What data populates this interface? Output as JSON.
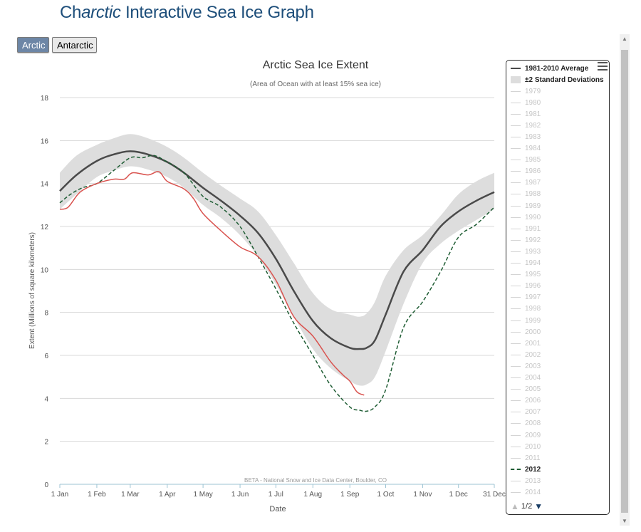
{
  "page": {
    "title_prefix": "Ch",
    "title_italic": "arctic",
    "title_suffix": " Interactive Sea Ice Graph"
  },
  "buttons": {
    "arctic": "Arctic",
    "antarctic": "Antarctic"
  },
  "colors": {
    "average": "#4a4a4a",
    "band": "#dddddd",
    "y2012": "#1f5d34",
    "current": "#d9534f",
    "grid": "#d8d8d8",
    "title_blue": "#1d4e7a"
  },
  "chart_data": {
    "type": "line",
    "title": "Arctic Sea Ice Extent",
    "subtitle": "(Area of Ocean with at least 15% sea ice)",
    "xlabel": "Date",
    "ylabel": "Extent (Millions of square kilometers)",
    "ylim": [
      0,
      18
    ],
    "yticks": [
      0,
      2,
      4,
      6,
      8,
      10,
      12,
      14,
      16,
      18
    ],
    "xlim": [
      1,
      365
    ],
    "xticks": [
      {
        "day": 1,
        "label": "1 Jan"
      },
      {
        "day": 32,
        "label": "1 Feb"
      },
      {
        "day": 60,
        "label": "1 Mar"
      },
      {
        "day": 91,
        "label": "1 Apr"
      },
      {
        "day": 121,
        "label": "1 May"
      },
      {
        "day": 152,
        "label": "1 Jun"
      },
      {
        "day": 182,
        "label": "1 Jul"
      },
      {
        "day": 213,
        "label": "1 Aug"
      },
      {
        "day": 244,
        "label": "1 Sep"
      },
      {
        "day": 274,
        "label": "1 Oct"
      },
      {
        "day": 305,
        "label": "1 Nov"
      },
      {
        "day": 335,
        "label": "1 Dec"
      },
      {
        "day": 365,
        "label": "31 Dec"
      }
    ],
    "grid": true,
    "credit": "BETA - National Snow and Ice Data Center, Boulder, CO",
    "series": [
      {
        "name": "1981-2010 Average",
        "style": "solid",
        "x": [
          1,
          15,
          32,
          46,
          60,
          75,
          91,
          105,
          121,
          136,
          152,
          167,
          182,
          197,
          213,
          228,
          244,
          252,
          258,
          265,
          274,
          289,
          305,
          320,
          335,
          350,
          365
        ],
        "y": [
          13.65,
          14.4,
          15.05,
          15.35,
          15.5,
          15.35,
          15.0,
          14.5,
          13.8,
          13.2,
          12.5,
          11.7,
          10.5,
          9.0,
          7.6,
          6.8,
          6.35,
          6.3,
          6.35,
          6.7,
          7.9,
          9.9,
          10.9,
          12.0,
          12.7,
          13.2,
          13.6
        ]
      },
      {
        "name": "±2 Standard Deviations",
        "style": "band",
        "x": [
          1,
          15,
          32,
          46,
          60,
          75,
          91,
          105,
          121,
          136,
          152,
          167,
          182,
          197,
          213,
          228,
          244,
          252,
          258,
          265,
          274,
          289,
          305,
          320,
          335,
          350,
          365
        ],
        "low": [
          12.8,
          13.5,
          14.3,
          14.6,
          14.8,
          14.65,
          14.3,
          13.8,
          13.0,
          12.4,
          11.6,
          10.6,
          9.3,
          7.8,
          6.3,
          5.4,
          4.8,
          4.6,
          4.65,
          5.0,
          6.2,
          8.4,
          10.3,
          11.2,
          11.8,
          12.3,
          12.8
        ],
        "high": [
          14.5,
          15.3,
          15.8,
          16.1,
          16.3,
          16.1,
          15.7,
          15.2,
          14.5,
          13.9,
          13.3,
          12.7,
          11.6,
          10.3,
          8.9,
          8.15,
          7.9,
          7.8,
          7.95,
          8.5,
          9.7,
          10.9,
          11.6,
          12.5,
          13.5,
          14.1,
          14.5
        ]
      },
      {
        "name": "2012",
        "style": "dashed",
        "x": [
          1,
          10,
          20,
          32,
          46,
          60,
          70,
          80,
          91,
          105,
          121,
          136,
          152,
          167,
          182,
          197,
          213,
          228,
          244,
          252,
          258,
          265,
          274,
          289,
          305,
          320,
          335,
          350,
          365
        ],
        "y": [
          13.1,
          13.5,
          13.8,
          14.0,
          14.6,
          15.2,
          15.2,
          15.3,
          15.0,
          14.5,
          13.4,
          12.9,
          12.0,
          10.6,
          9.1,
          7.5,
          6.0,
          4.6,
          3.6,
          3.45,
          3.4,
          3.6,
          4.4,
          7.3,
          8.5,
          9.9,
          11.5,
          12.1,
          12.9
        ]
      },
      {
        "name": "Current",
        "style": "solid",
        "x": [
          1,
          8,
          18,
          32,
          46,
          55,
          62,
          75,
          84,
          91,
          105,
          113,
          121,
          136,
          152,
          167,
          182,
          197,
          213,
          228,
          238,
          244,
          250,
          256
        ],
        "y": [
          12.8,
          12.9,
          13.6,
          14.0,
          14.2,
          14.2,
          14.5,
          14.4,
          14.55,
          14.1,
          13.75,
          13.3,
          12.6,
          11.8,
          11.05,
          10.6,
          9.5,
          7.8,
          6.9,
          5.7,
          5.1,
          4.8,
          4.3,
          4.15
        ]
      }
    ]
  },
  "legend": {
    "average": "1981-2010 Average",
    "stddev": "±2 Standard Deviations",
    "years": [
      "1979",
      "1980",
      "1981",
      "1982",
      "1983",
      "1984",
      "1985",
      "1986",
      "1987",
      "1988",
      "1989",
      "1990",
      "1991",
      "1992",
      "1993",
      "1994",
      "1995",
      "1996",
      "1997",
      "1998",
      "1999",
      "2000",
      "2001",
      "2002",
      "2003",
      "2004",
      "2005",
      "2006",
      "2007",
      "2008",
      "2009",
      "2010",
      "2011",
      "2012",
      "2013",
      "2014"
    ],
    "highlight_year": "2012",
    "page": "1/2"
  }
}
